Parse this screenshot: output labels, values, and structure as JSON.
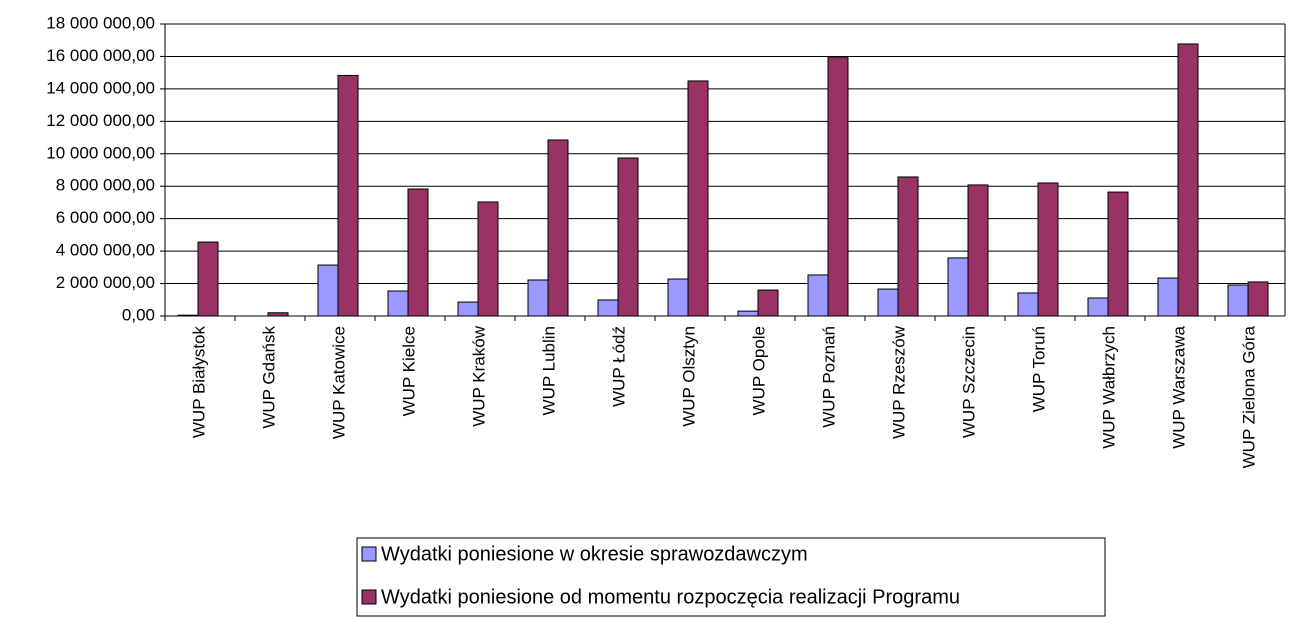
{
  "chart_data": {
    "type": "bar",
    "categories": [
      "WUP Białystok",
      "WUP Gdańsk",
      "WUP Katowice",
      "WUP Kielce",
      "WUP Kraków",
      "WUP Lublin",
      "WUP Łódź",
      "WUP Olsztyn",
      "WUP Opole",
      "WUP Poznań",
      "WUP Rzeszów",
      "WUP Szczecin",
      "WUP Toruń",
      "WUP Wałbrzych",
      "WUP Warszawa",
      "WUP Zielona Góra"
    ],
    "series": [
      {
        "name": "Wydatki poniesione w okresie sprawozdawczym",
        "color": "#9999ff",
        "values": [
          50000,
          0,
          3140000,
          1540000,
          860000,
          2220000,
          990000,
          2280000,
          300000,
          2530000,
          1660000,
          3580000,
          1420000,
          1110000,
          2340000,
          1910000
        ]
      },
      {
        "name": "Wydatki poniesione od momentu rozpoczęcia realizacji Programu",
        "color": "#993366",
        "values": [
          4560000,
          200000,
          14830000,
          7830000,
          7030000,
          10850000,
          9740000,
          14490000,
          1600000,
          15970000,
          8570000,
          8080000,
          8200000,
          7640000,
          16770000,
          2100000
        ]
      }
    ],
    "ylim": [
      0,
      18000000
    ],
    "yticks": [
      {
        "value": 0,
        "label": "0,00"
      },
      {
        "value": 2000000,
        "label": "2 000 000,00"
      },
      {
        "value": 4000000,
        "label": "4 000 000,00"
      },
      {
        "value": 6000000,
        "label": "6 000 000,00"
      },
      {
        "value": 8000000,
        "label": "8 000 000,00"
      },
      {
        "value": 10000000,
        "label": "10 000 000,00"
      },
      {
        "value": 12000000,
        "label": "12 000 000,00"
      },
      {
        "value": 14000000,
        "label": "14 000 000,00"
      },
      {
        "value": 16000000,
        "label": "16 000 000,00"
      },
      {
        "value": 18000000,
        "label": "18 000 000,00"
      }
    ],
    "grid": true
  }
}
